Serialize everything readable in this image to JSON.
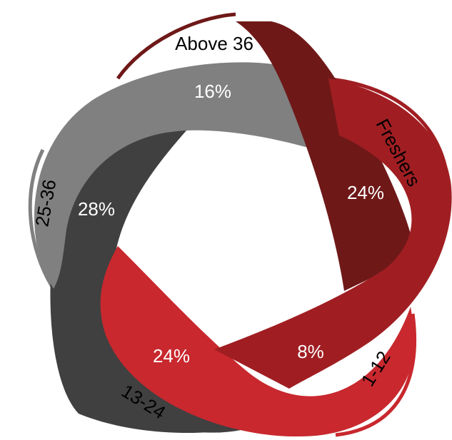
{
  "segments": [
    {
      "label": "Above 36",
      "value": "16%"
    },
    {
      "label": "Freshers",
      "value": "24%"
    },
    {
      "label": "1-12",
      "value": "8%"
    },
    {
      "label": "13-24",
      "value": "24%"
    },
    {
      "label": "25-36",
      "value": "28%"
    }
  ]
}
